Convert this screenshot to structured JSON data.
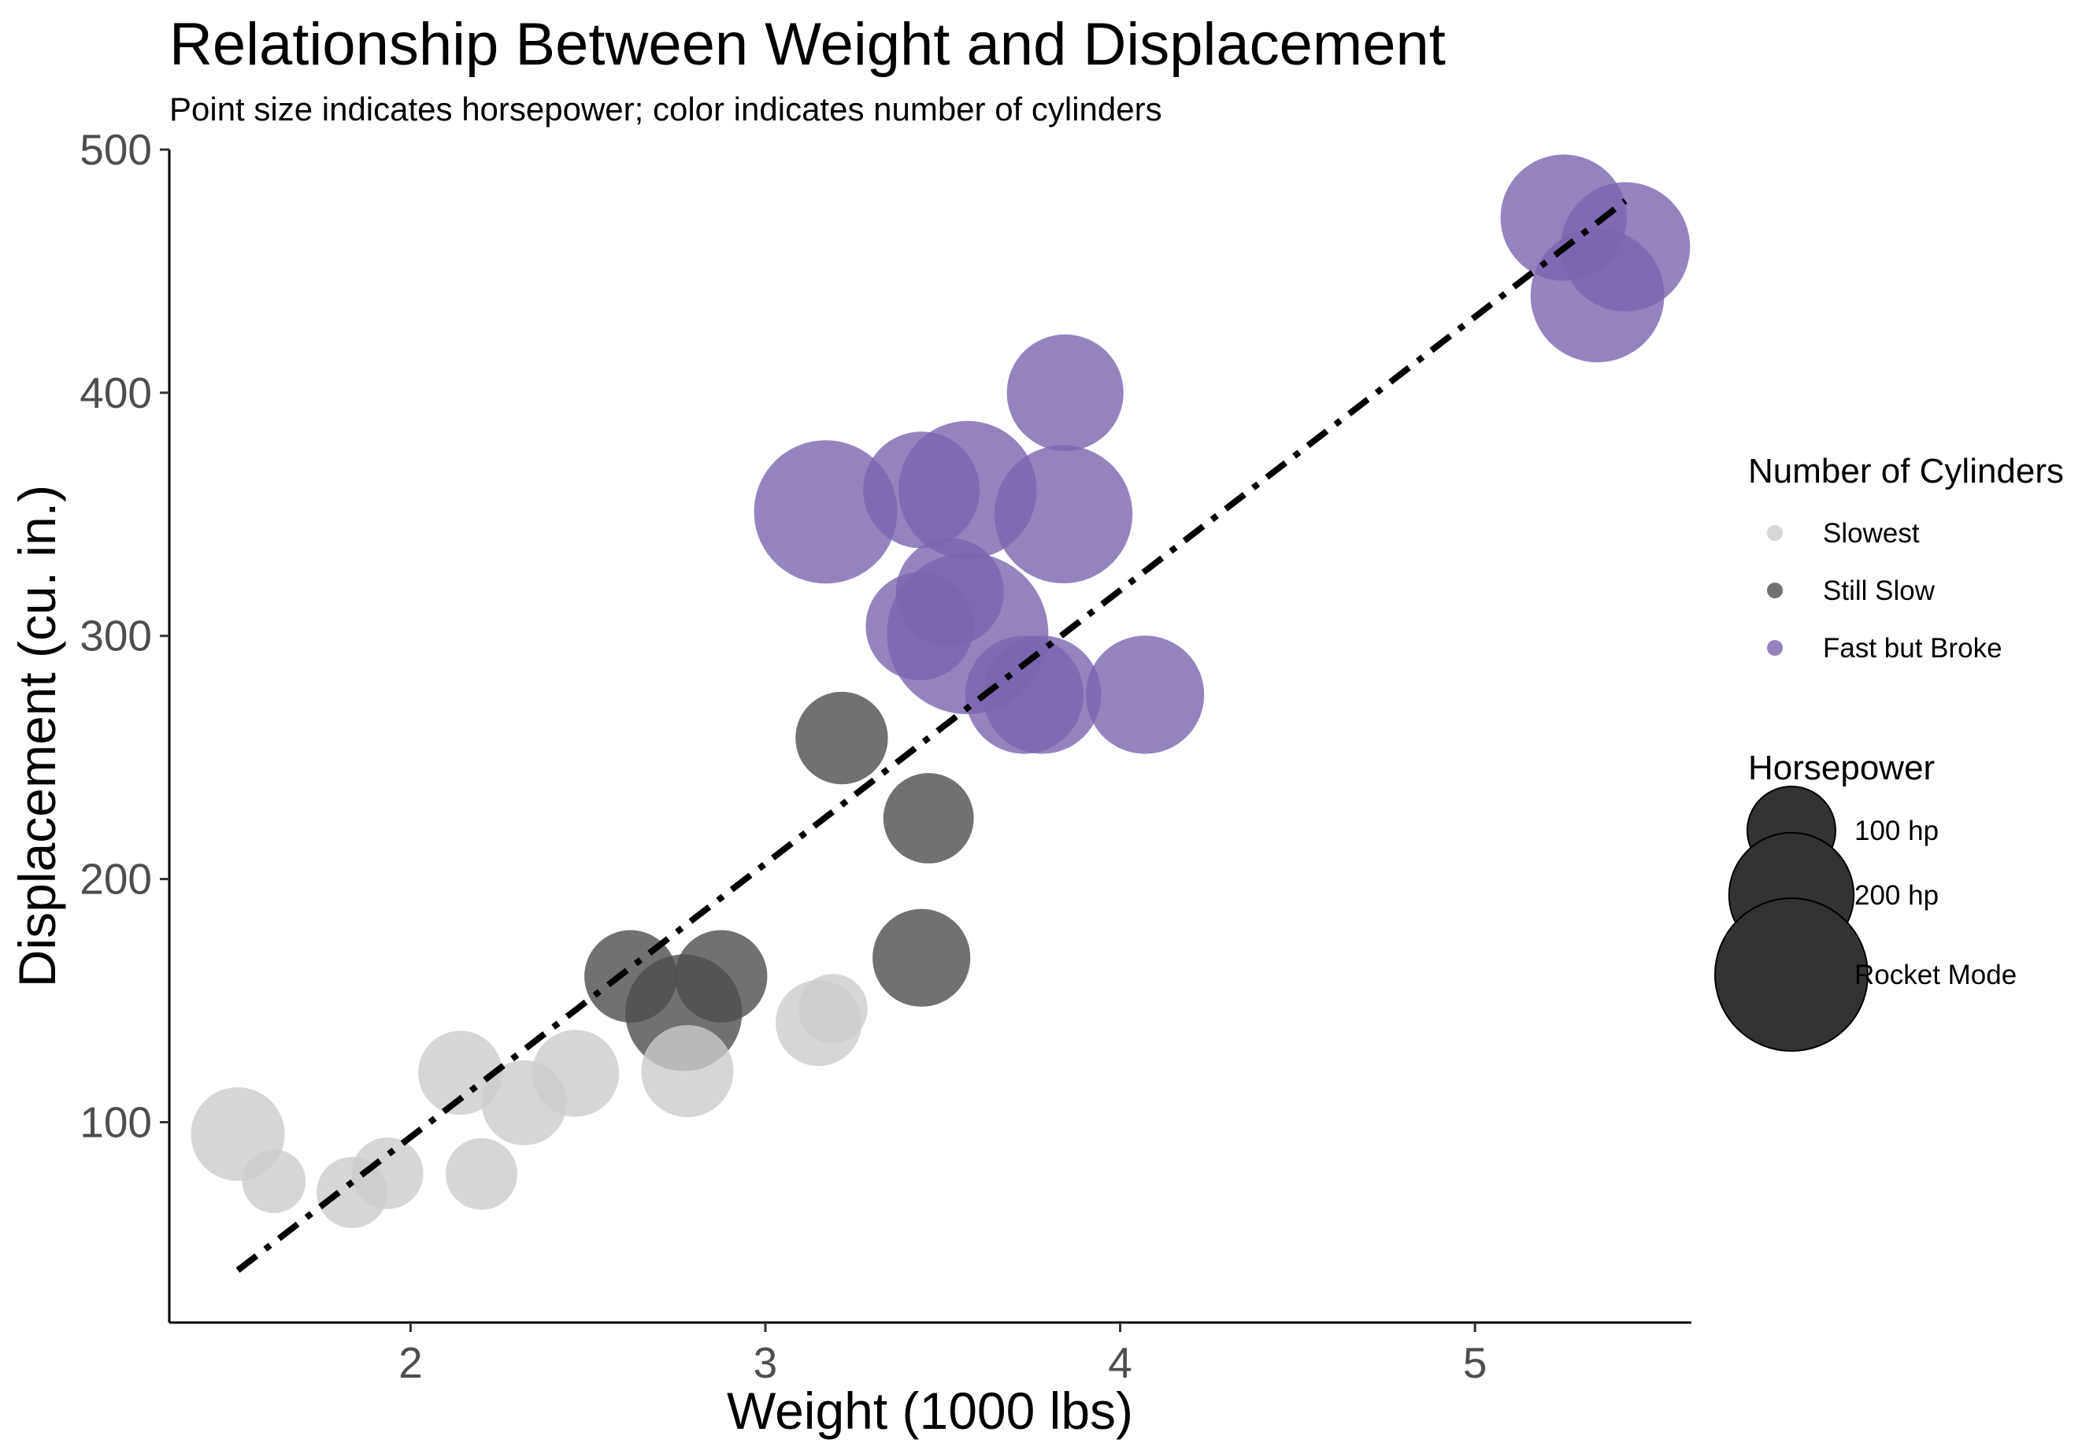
{
  "chart_data": {
    "type": "scatter",
    "title": "Relationship Between Weight and Displacement",
    "subtitle": "Point size indicates horsepower; color indicates number of cylinders",
    "xlabel": "Weight (1000 lbs)",
    "ylabel": "Displacement (cu. in.)",
    "xlim": [
      1.32,
      5.61
    ],
    "ylim": [
      17.6,
      500
    ],
    "xticks": [
      2,
      3,
      4,
      5
    ],
    "yticks": [
      100,
      200,
      300,
      400,
      500
    ],
    "grid": false,
    "legend_position": "right",
    "series": [
      {
        "name": "Slowest",
        "color": "#cccccc",
        "points": [
          {
            "x": 1.513,
            "y": 95.1,
            "hp": 113
          },
          {
            "x": 1.615,
            "y": 75.7,
            "hp": 52
          },
          {
            "x": 1.835,
            "y": 71.1,
            "hp": 65
          },
          {
            "x": 1.935,
            "y": 79.0,
            "hp": 66
          },
          {
            "x": 2.2,
            "y": 78.7,
            "hp": 66
          },
          {
            "x": 2.14,
            "y": 120.3,
            "hp": 91
          },
          {
            "x": 2.32,
            "y": 108.0,
            "hp": 93
          },
          {
            "x": 2.465,
            "y": 120.1,
            "hp": 97
          },
          {
            "x": 2.78,
            "y": 121.0,
            "hp": 109
          },
          {
            "x": 3.15,
            "y": 140.8,
            "hp": 95
          },
          {
            "x": 3.19,
            "y": 146.7,
            "hp": 62
          }
        ]
      },
      {
        "name": "Still Slow",
        "color": "#4d4d4d",
        "points": [
          {
            "x": 2.62,
            "y": 160.0,
            "hp": 110
          },
          {
            "x": 2.875,
            "y": 160.0,
            "hp": 110
          },
          {
            "x": 2.77,
            "y": 145.0,
            "hp": 175
          },
          {
            "x": 3.215,
            "y": 258.0,
            "hp": 110
          },
          {
            "x": 3.44,
            "y": 167.6,
            "hp": 123
          },
          {
            "x": 3.46,
            "y": 225.0,
            "hp": 105
          }
        ]
      },
      {
        "name": "Fast but Broke",
        "color": "#7a64b0",
        "points": [
          {
            "x": 3.17,
            "y": 351.0,
            "hp": 264
          },
          {
            "x": 3.435,
            "y": 304.0,
            "hp": 150
          },
          {
            "x": 3.44,
            "y": 360.0,
            "hp": 175
          },
          {
            "x": 3.52,
            "y": 318.0,
            "hp": 150
          },
          {
            "x": 3.57,
            "y": 360.0,
            "hp": 245
          },
          {
            "x": 3.57,
            "y": 301.0,
            "hp": 335
          },
          {
            "x": 3.73,
            "y": 275.8,
            "hp": 180
          },
          {
            "x": 3.78,
            "y": 275.8,
            "hp": 180
          },
          {
            "x": 3.84,
            "y": 350.0,
            "hp": 245
          },
          {
            "x": 3.845,
            "y": 400.0,
            "hp": 175
          },
          {
            "x": 4.07,
            "y": 275.8,
            "hp": 180
          },
          {
            "x": 5.25,
            "y": 472.0,
            "hp": 205
          },
          {
            "x": 5.345,
            "y": 440.0,
            "hp": 230
          },
          {
            "x": 5.424,
            "y": 460.0,
            "hp": 215
          }
        ]
      }
    ],
    "trend_line": {
      "style": "dash-dot",
      "color": "#000000",
      "x": [
        1.513,
        5.424
      ],
      "y": [
        39.1,
        478.9
      ]
    },
    "legends": {
      "color": {
        "title": "Number of Cylinders",
        "items": [
          {
            "label": "Slowest",
            "color": "#cccccc"
          },
          {
            "label": "Still Slow",
            "color": "#4d4d4d"
          },
          {
            "label": "Fast but Broke",
            "color": "#7a64b0"
          }
        ]
      },
      "size": {
        "title": "Horsepower",
        "items": [
          {
            "label": "100 hp",
            "hp": 100
          },
          {
            "label": "200 hp",
            "hp": 200
          },
          {
            "label": "Rocket Mode",
            "hp": 300
          }
        ]
      }
    }
  }
}
